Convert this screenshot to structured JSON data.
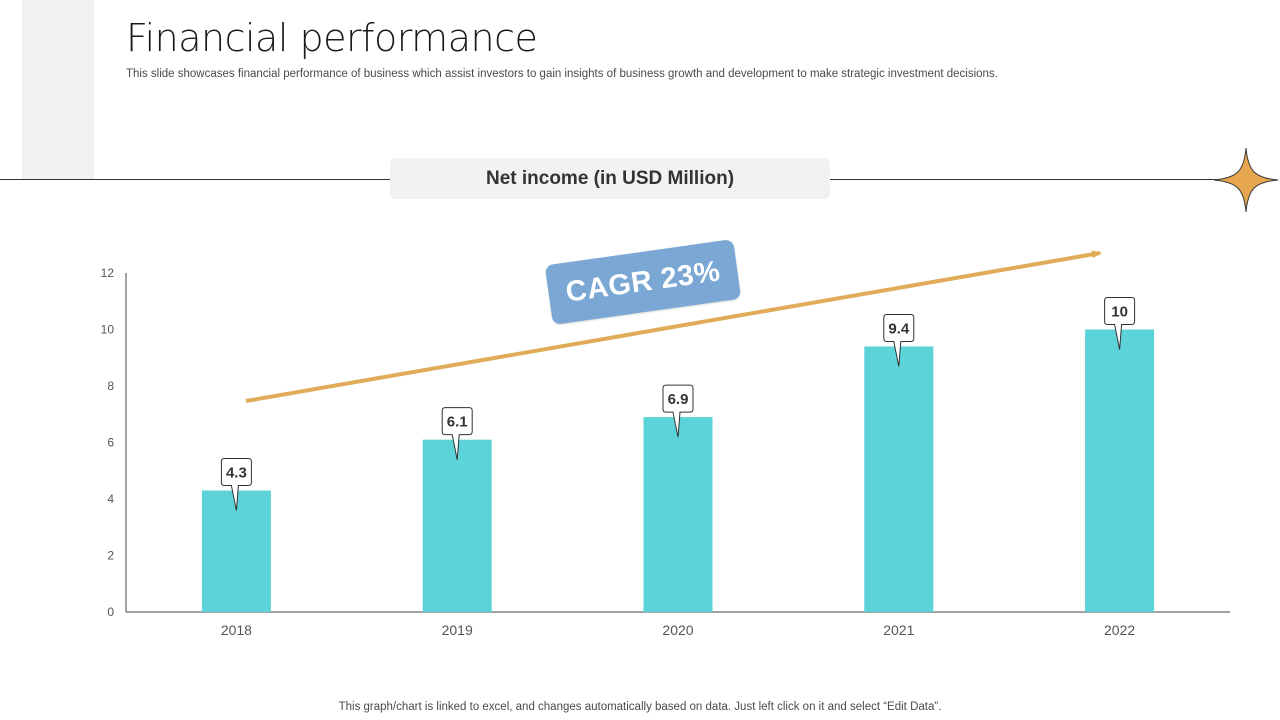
{
  "slide": {
    "title": "Financial performance",
    "subtitle": "This slide showcases financial performance of business which assist investors to gain insights of business growth and development to make strategic investment decisions.",
    "footnote": "This graph/chart is linked to excel, and changes automatically based on data. Just left click on it and select “Edit Data”.",
    "cagr_label": "CAGR 23%"
  },
  "colors": {
    "bar": "#5bd3d8",
    "trend_arrow": "#e0ac5a",
    "cagr_badge": "#7aa7d4",
    "star": "#e6a54f"
  },
  "chart_data": {
    "type": "bar",
    "title": "Net income (in USD Million)",
    "categories": [
      "2018",
      "2019",
      "2020",
      "2021",
      "2022"
    ],
    "values": [
      4.3,
      6.1,
      6.9,
      9.4,
      10
    ],
    "value_labels": [
      "4.3",
      "6.1",
      "6.9",
      "9.4",
      "10"
    ],
    "ylim": [
      0,
      12
    ],
    "yticks": [
      0,
      2,
      4,
      6,
      8,
      10,
      12
    ],
    "xlabel": "",
    "ylabel": "",
    "grid": false,
    "legend": "none"
  }
}
